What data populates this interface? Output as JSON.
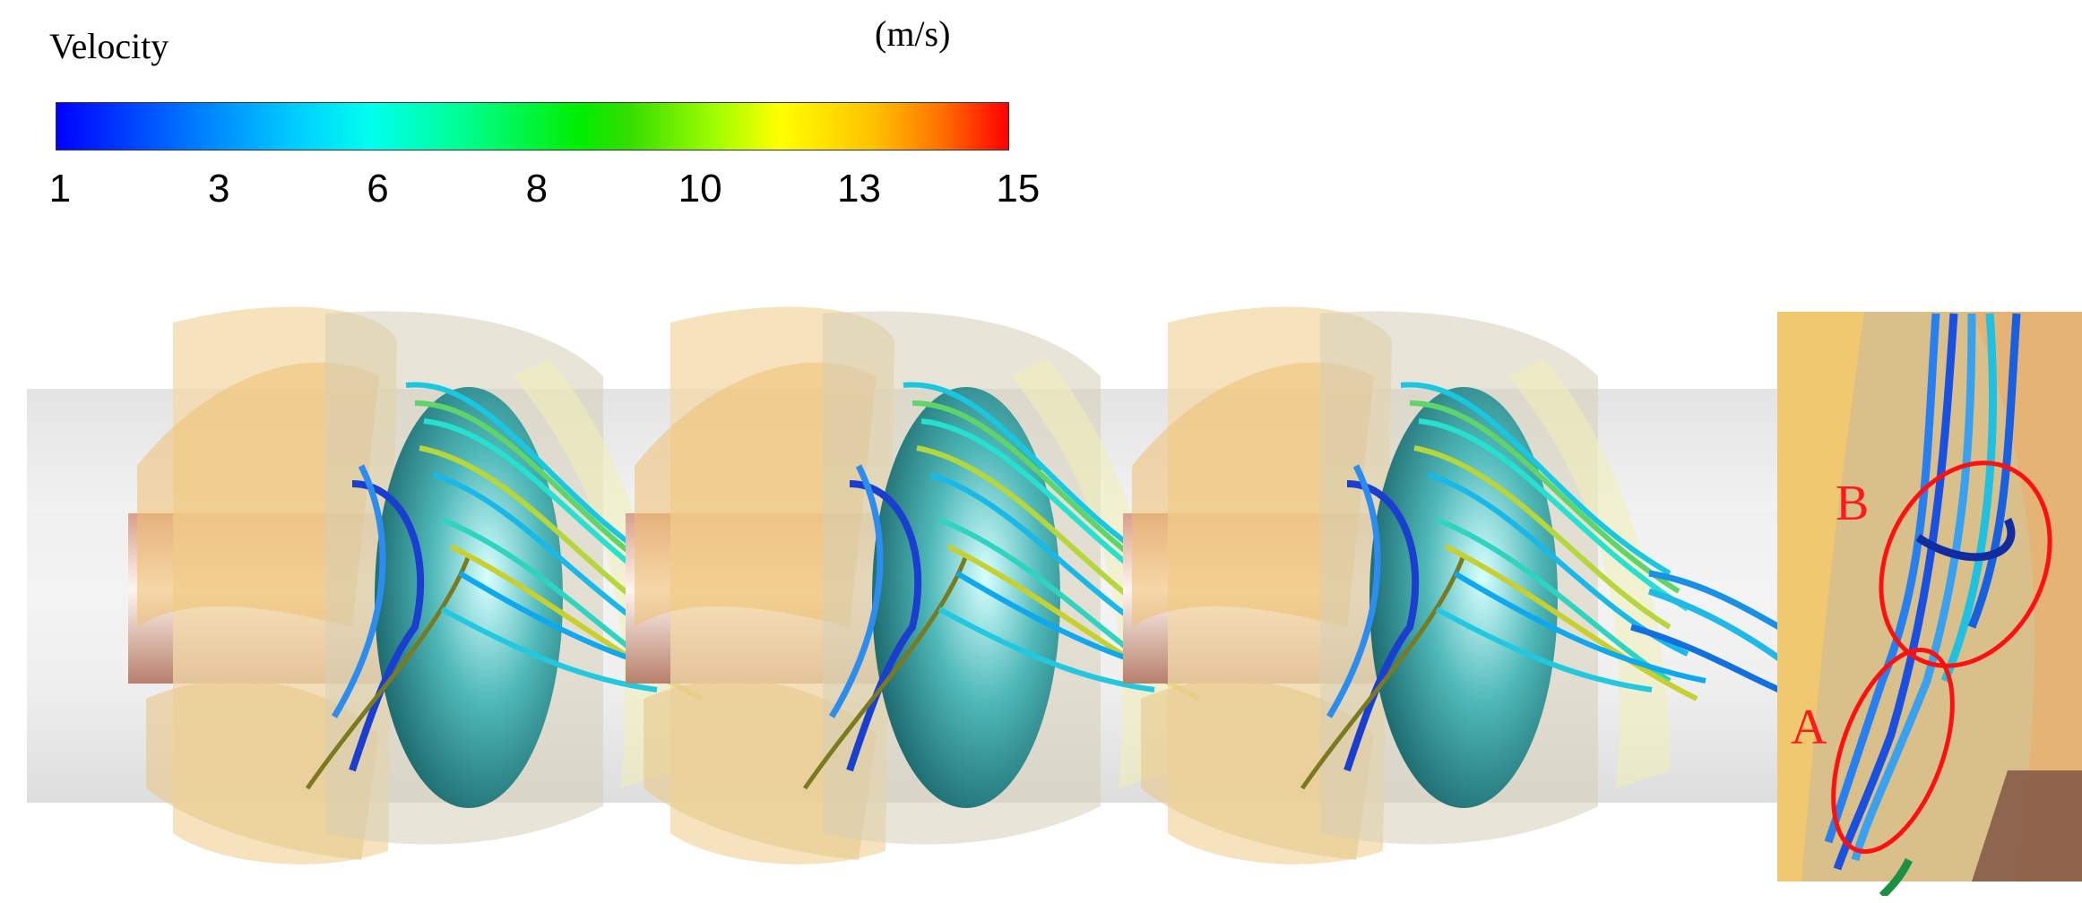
{
  "legend": {
    "title": "Velocity",
    "unit": "(m/s)",
    "ticks": [
      1,
      3,
      6,
      8,
      10,
      13,
      15
    ]
  },
  "annotations": {
    "region_a": "A",
    "region_b": "B"
  }
}
